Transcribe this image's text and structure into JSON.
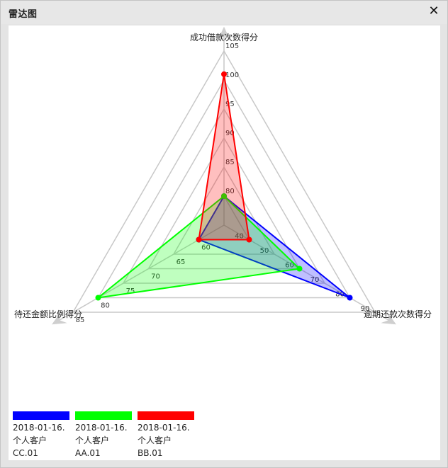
{
  "window": {
    "title": "雷达图",
    "close_icon": "close-icon"
  },
  "chart_data": {
    "type": "radar",
    "axes": [
      {
        "name": "成功借款次数得分",
        "ticks": [
          80,
          85,
          90,
          95,
          100,
          105
        ],
        "range": [
          75,
          105
        ]
      },
      {
        "name": "逾期还款次数得分",
        "ticks": [
          40,
          50,
          60,
          70,
          80,
          90
        ],
        "range": [
          30,
          90
        ]
      },
      {
        "name": "待还金额比例得分",
        "ticks": [
          60,
          65,
          70,
          75,
          80,
          85
        ],
        "range": [
          55,
          85
        ]
      }
    ],
    "series": [
      {
        "name": "2018-01-16.\n个人客户\nCC.01",
        "color": "#0000ff",
        "fill": "rgba(0,0,255,0.25)",
        "values": [
          80,
          80,
          60
        ]
      },
      {
        "name": "2018-01-16.\n个人客户\nAA.01",
        "color": "#00ff00",
        "fill": "rgba(0,255,0,0.25)",
        "values": [
          80,
          60,
          80
        ]
      },
      {
        "name": "2018-01-16.\n个人客户\nBB.01",
        "color": "#ff0000",
        "fill": "rgba(255,0,0,0.25)",
        "values": [
          101,
          40,
          60
        ]
      }
    ],
    "legend": {
      "placement": "bottom-left",
      "entries": [
        {
          "lines": [
            "2018-01-16.",
            "个人客户",
            "CC.01"
          ],
          "color": "#0000ff"
        },
        {
          "lines": [
            "2018-01-16.",
            "个人客户",
            "AA.01"
          ],
          "color": "#00ff00"
        },
        {
          "lines": [
            "2018-01-16.",
            "个人客户",
            "BB.01"
          ],
          "color": "#ff0000"
        }
      ]
    },
    "grid": true
  }
}
